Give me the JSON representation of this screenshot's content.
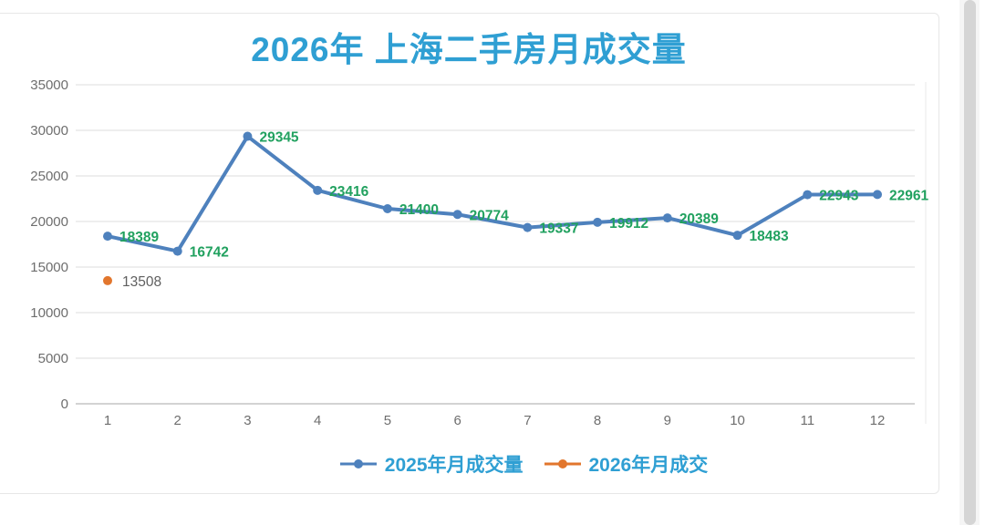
{
  "chart_data": {
    "type": "line",
    "title": "2026年 上海二手房月成交量",
    "categories": [
      "1",
      "2",
      "3",
      "4",
      "5",
      "6",
      "7",
      "8",
      "9",
      "10",
      "11",
      "12"
    ],
    "series": [
      {
        "name": "2025年月成交量",
        "color": "#4e81bd",
        "label_color": "#21a15f",
        "label_bold": true,
        "values": [
          18389,
          16742,
          29345,
          23416,
          21400,
          20774,
          19337,
          19912,
          20389,
          18483,
          22943,
          22961
        ]
      },
      {
        "name": "2026年月成交",
        "color": "#e2762d",
        "label_color": "#5f5f5f",
        "label_bold": false,
        "values": [
          13508,
          null,
          null,
          null,
          null,
          null,
          null,
          null,
          null,
          null,
          null,
          null
        ]
      }
    ],
    "xlabel": "",
    "ylabel": "",
    "ylim": [
      0,
      35000
    ],
    "yticks": [
      0,
      5000,
      10000,
      15000,
      20000,
      25000,
      30000,
      35000
    ],
    "grid": true,
    "legend_position": "bottom"
  },
  "colors": {
    "title_text": "#2f9fd3",
    "legend_text": "#2f9fd3",
    "axis_text": "#6e6e6e",
    "gridline": "#dcdcdc",
    "axis_line": "#b9b9b9",
    "frame_line": "#e8e8e8",
    "card_border": "#e7e7e7",
    "scrollbar_thumb": "#d5d5d5",
    "scrollbar_track": "#f5f5f5",
    "background": "#ffffff"
  }
}
